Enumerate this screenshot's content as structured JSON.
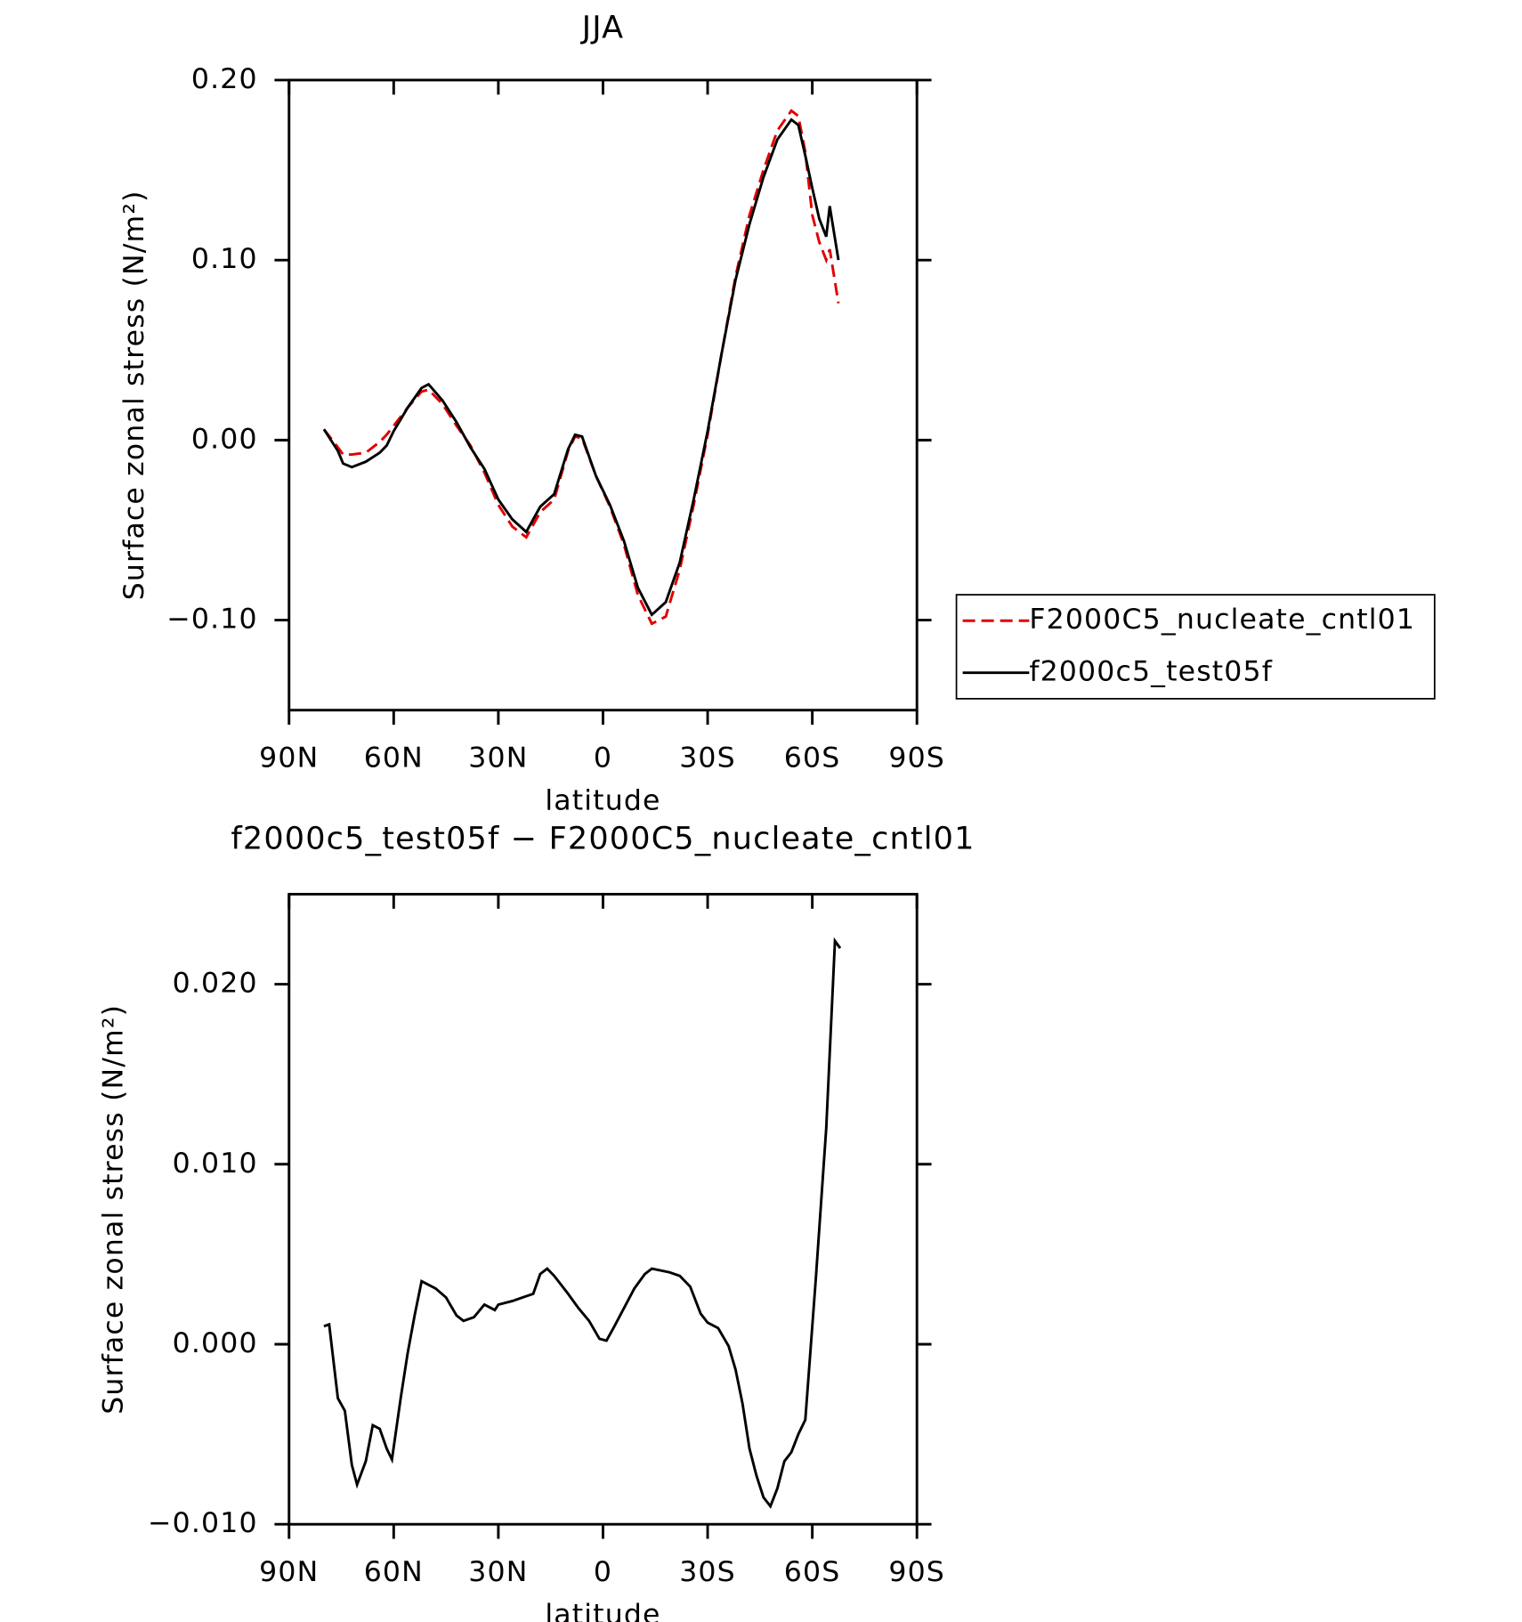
{
  "chart_data": [
    {
      "type": "line",
      "title": "JJA",
      "xlabel": "latitude",
      "ylabel": "Surface zonal stress (N/m²)",
      "x": [
        80,
        76,
        74.5,
        72,
        68,
        64,
        62,
        60,
        56,
        52,
        50,
        46,
        42,
        38,
        34,
        30,
        26,
        22,
        18,
        14,
        10,
        8,
        6,
        2,
        -2,
        -6,
        -10,
        -14,
        -18,
        -22,
        -26,
        -30,
        -34,
        -38,
        -42,
        -46,
        -50,
        -54,
        -56,
        -58,
        -60,
        -62,
        -64,
        -65,
        -67.5
      ],
      "series": [
        {
          "name": "F2000C5_nucleate_cntl01",
          "color": "#e00000",
          "line_style": "dashed",
          "values": [
            0.006,
            -0.004,
            -0.008,
            -0.008,
            -0.007,
            -0.001,
            0.003,
            0.008,
            0.018,
            0.027,
            0.028,
            0.02,
            0.008,
            -0.003,
            -0.018,
            -0.036,
            -0.048,
            -0.054,
            -0.04,
            -0.033,
            -0.006,
            0.002,
            0.001,
            -0.02,
            -0.037,
            -0.058,
            -0.086,
            -0.102,
            -0.098,
            -0.072,
            -0.036,
            0.003,
            0.048,
            0.091,
            0.125,
            0.15,
            0.172,
            0.183,
            0.18,
            0.16,
            0.125,
            0.11,
            0.1,
            0.106,
            0.076
          ]
        },
        {
          "name": "f2000c5_test05f",
          "color": "#000000",
          "line_style": "solid",
          "values": [
            0.006,
            -0.006,
            -0.013,
            -0.015,
            -0.012,
            -0.007,
            -0.003,
            0.005,
            0.018,
            0.029,
            0.031,
            0.022,
            0.01,
            -0.004,
            -0.016,
            -0.033,
            -0.044,
            -0.051,
            -0.037,
            -0.03,
            -0.005,
            0.003,
            0.002,
            -0.02,
            -0.036,
            -0.056,
            -0.082,
            -0.097,
            -0.09,
            -0.068,
            -0.033,
            0.005,
            0.048,
            0.089,
            0.12,
            0.146,
            0.167,
            0.178,
            0.175,
            0.158,
            0.14,
            0.123,
            0.113,
            0.13,
            0.1
          ]
        }
      ],
      "xlim": [
        90,
        -90
      ],
      "xticks": [
        {
          "value": 90,
          "label": "90N"
        },
        {
          "value": 60,
          "label": "60N"
        },
        {
          "value": 30,
          "label": "30N"
        },
        0,
        {
          "value": -30,
          "label": "30S"
        },
        {
          "value": -60,
          "label": "60S"
        },
        {
          "value": -90,
          "label": "90S"
        }
      ],
      "ylim": [
        -0.15,
        0.2
      ],
      "yticks": [
        {
          "value": -0.1,
          "label": "−0.10"
        },
        {
          "value": 0,
          "label": "0.00"
        },
        {
          "value": 0.1,
          "label": "0.10"
        },
        {
          "value": 0.2,
          "label": "0.20"
        }
      ],
      "legend": "right"
    },
    {
      "type": "line",
      "title": "f2000c5_test05f − F2000C5_nucleate_cntl01",
      "xlabel": "latitude",
      "ylabel": "Surface zonal stress (N/m²)",
      "x": [
        80,
        78.5,
        76,
        74,
        72,
        70.5,
        68,
        66,
        64,
        62,
        60.5,
        58,
        56,
        54,
        52,
        48,
        45,
        42,
        40,
        37,
        34,
        31,
        30,
        26,
        23,
        20,
        18,
        16,
        14,
        10,
        7,
        4,
        1,
        -1,
        -3,
        -6,
        -9,
        -12,
        -14,
        -19,
        -22,
        -25,
        -28,
        -30,
        -33,
        -36,
        -38,
        -40,
        -42,
        -44,
        -46,
        -48,
        -50,
        -52,
        -54,
        -56,
        -58,
        -61,
        -64,
        -66.5,
        -68
      ],
      "values": [
        0.001,
        0.0011,
        -0.003,
        -0.0037,
        -0.0067,
        -0.0078,
        -0.0065,
        -0.0045,
        -0.0047,
        -0.0058,
        -0.0064,
        -0.003,
        -0.0005,
        0.0016,
        0.0035,
        0.0031,
        0.0026,
        0.0016,
        0.0013,
        0.0015,
        0.0022,
        0.0019,
        0.0022,
        0.0024,
        0.0026,
        0.0028,
        0.0039,
        0.0042,
        0.0038,
        0.0028,
        0.002,
        0.0013,
        0.0003,
        0.0002,
        0.0009,
        0.002,
        0.0031,
        0.0039,
        0.0042,
        0.004,
        0.0038,
        0.0032,
        0.0017,
        0.0012,
        0.0009,
        -0.0001,
        -0.0014,
        -0.0033,
        -0.0058,
        -0.0073,
        -0.0085,
        -0.009,
        -0.008,
        -0.0065,
        -0.006,
        -0.005,
        -0.0042,
        0.0036,
        0.012,
        0.0224,
        0.022
      ],
      "color": "#000000",
      "xlim": [
        90,
        -90
      ],
      "xticks": [
        {
          "value": 90,
          "label": "90N"
        },
        {
          "value": 60,
          "label": "60N"
        },
        {
          "value": 30,
          "label": "30N"
        },
        0,
        {
          "value": -30,
          "label": "30S"
        },
        {
          "value": -60,
          "label": "60S"
        },
        {
          "value": -90,
          "label": "90S"
        }
      ],
      "ylim": [
        -0.01,
        0.025
      ],
      "yticks": [
        {
          "value": -0.01,
          "label": "−0.010"
        },
        {
          "value": 0,
          "label": "0.000"
        },
        {
          "value": 0.01,
          "label": "0.010"
        },
        {
          "value": 0.02,
          "label": "0.020"
        }
      ]
    }
  ]
}
